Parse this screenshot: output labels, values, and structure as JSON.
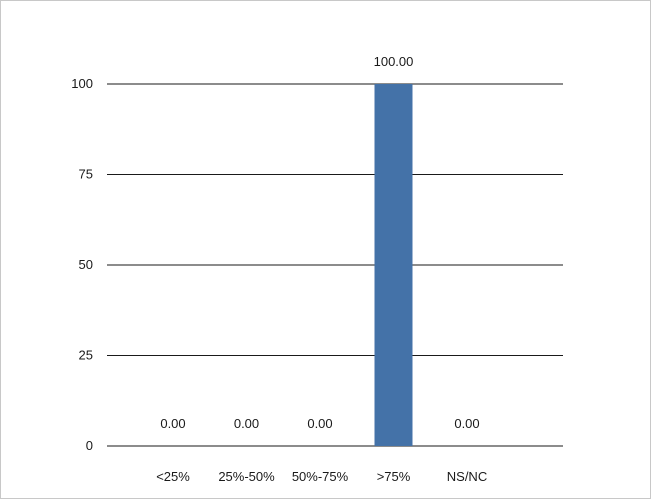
{
  "chart_data": {
    "type": "bar",
    "categories": [
      "<25%",
      "25%-50%",
      "50%-75%",
      ">75%",
      "NS/NC"
    ],
    "values": [
      0.0,
      0.0,
      0.0,
      100.0,
      0.0
    ],
    "data_labels": [
      "0.00",
      "0.00",
      "0.00",
      "100.00",
      "0.00"
    ],
    "ylim": [
      0,
      100
    ],
    "yticks": [
      0,
      25,
      50,
      75,
      100
    ],
    "ytick_labels": [
      "0",
      "25",
      "50",
      "75",
      "100"
    ],
    "grid": true,
    "legend": "none",
    "bar_color": "#4472a8",
    "title": "",
    "xlabel": "",
    "ylabel": ""
  }
}
